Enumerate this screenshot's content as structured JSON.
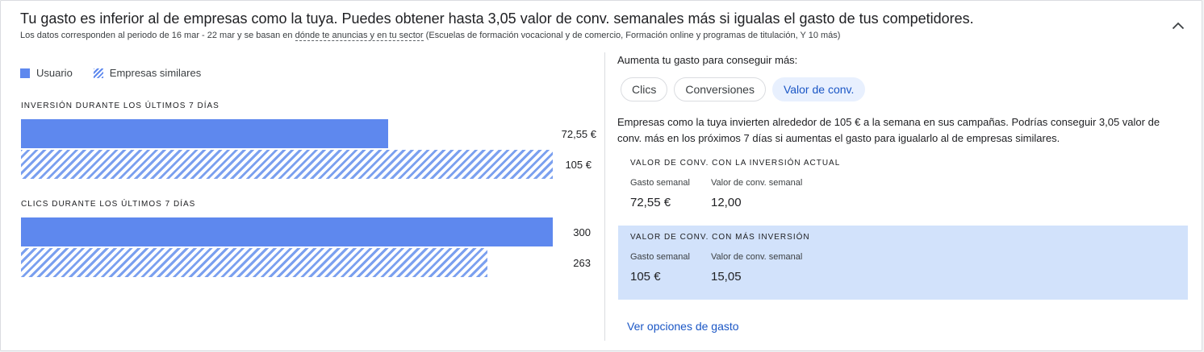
{
  "header": {
    "title": "Tu gasto es inferior al de empresas como la tuya. Puedes obtener hasta 3,05 valor de conv. semanales más si igualas el gasto de tus competidores.",
    "subtitle_prefix": "Los datos corresponden al periodo de 16 mar - 22 mar y se basan en ",
    "subtitle_link": "dónde te anuncias y en tu sector",
    "subtitle_suffix": " (Escuelas de formación vocacional y de comercio, Formación online y programas de titulación, Y 10 más)",
    "collapse_icon": "chevron-up-icon"
  },
  "legend": {
    "user_label": "Usuario",
    "similar_label": "Empresas similares"
  },
  "chart_data": [
    {
      "type": "bar",
      "title": "INVERSIÓN DURANTE LOS ÚLTIMOS 7 DÍAS",
      "series": [
        {
          "name": "Usuario",
          "value": 72.55,
          "label": "72,55 €"
        },
        {
          "name": "Empresas similares",
          "value": 105,
          "label": "105 €"
        }
      ]
    },
    {
      "type": "bar",
      "title": "CLICS DURANTE LOS ÚLTIMOS 7 DÍAS",
      "series": [
        {
          "name": "Usuario",
          "value": 300,
          "label": "300"
        },
        {
          "name": "Empresas similares",
          "value": 263,
          "label": "263"
        }
      ]
    }
  ],
  "right": {
    "heading": "Aumenta tu gasto para conseguir más:",
    "chips": [
      "Clics",
      "Conversiones",
      "Valor de conv."
    ],
    "active_chip": "Valor de conv.",
    "description": "Empresas como la tuya invierten alrededor de 105 € a la semana en sus campañas. Podrías conseguir 3,05 valor de conv. más en los próximos 7 días si aumentas el gasto para igualarlo al de empresas similares.",
    "current": {
      "title": "VALOR DE CONV. CON LA INVERSIÓN ACTUAL",
      "spend_label": "Gasto semanal",
      "spend_value": "72,55 €",
      "conv_label": "Valor de conv. semanal",
      "conv_value": "12,00"
    },
    "more": {
      "title": "VALOR DE CONV. CON MÁS INVERSIÓN",
      "spend_label": "Gasto semanal",
      "spend_value": "105 €",
      "conv_label": "Valor de conv. semanal",
      "conv_value": "15,05"
    },
    "cta": "Ver opciones de gasto"
  },
  "colors": {
    "bar": "#5e88ee",
    "highlight": "#d2e2fb",
    "link": "#1a56c5"
  }
}
